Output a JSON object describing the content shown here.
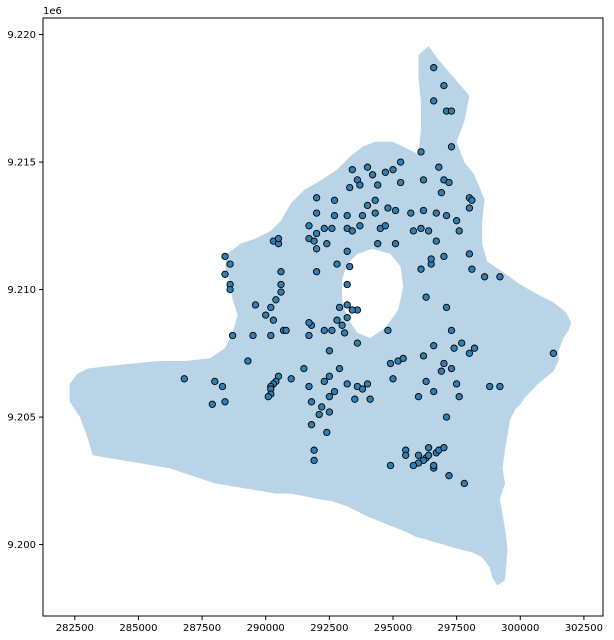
{
  "chart_data": {
    "type": "scatter",
    "title": "",
    "xlabel": "",
    "ylabel": "",
    "y_offset_label": "1e6",
    "xlim": [
      281250,
      303250
    ],
    "ylim": [
      9197200,
      9220650
    ],
    "x_ticks": [
      282500,
      285000,
      287500,
      290000,
      292500,
      295000,
      297500,
      300000,
      302500
    ],
    "x_tick_labels": [
      "282500",
      "285000",
      "287500",
      "290000",
      "292500",
      "295000",
      "297500",
      "300000",
      "302500"
    ],
    "y_ticks": [
      9200000,
      9205000,
      9210000,
      9215000,
      9220000
    ],
    "y_tick_labels": [
      "9.200",
      "9.205",
      "9.210",
      "9.215",
      "9.220"
    ],
    "grid": false,
    "legend": "none",
    "colors": {
      "area_fill": "#b8d4e6",
      "point_fill": "#2f7fb5",
      "point_edge": "#000000",
      "axis": "#000000"
    },
    "region": {
      "outline": [
        [
          296400,
          9219550
        ],
        [
          296800,
          9219000
        ],
        [
          297400,
          9218300
        ],
        [
          298000,
          9217600
        ],
        [
          297800,
          9216600
        ],
        [
          297500,
          9215800
        ],
        [
          297800,
          9215000
        ],
        [
          298200,
          9214500
        ],
        [
          298600,
          9213500
        ],
        [
          298500,
          9212700
        ],
        [
          298500,
          9211800
        ],
        [
          298700,
          9211100
        ],
        [
          299300,
          9210700
        ],
        [
          300000,
          9210200
        ],
        [
          300700,
          9209800
        ],
        [
          301300,
          9209500
        ],
        [
          301800,
          9209100
        ],
        [
          302000,
          9208700
        ],
        [
          301900,
          9208400
        ],
        [
          301700,
          9208100
        ],
        [
          301500,
          9207600
        ],
        [
          301500,
          9207200
        ],
        [
          301300,
          9206800
        ],
        [
          300700,
          9206300
        ],
        [
          300200,
          9205800
        ],
        [
          300000,
          9205500
        ],
        [
          299800,
          9205300
        ],
        [
          299600,
          9204900
        ],
        [
          299500,
          9204300
        ],
        [
          299400,
          9203700
        ],
        [
          299300,
          9203000
        ],
        [
          299400,
          9202400
        ],
        [
          299200,
          9201800
        ],
        [
          299300,
          9201200
        ],
        [
          299400,
          9200600
        ],
        [
          299500,
          9199800
        ],
        [
          299400,
          9198600
        ],
        [
          299100,
          9198400
        ],
        [
          298900,
          9198700
        ],
        [
          298800,
          9199100
        ],
        [
          298500,
          9199500
        ],
        [
          298100,
          9199700
        ],
        [
          297700,
          9199800
        ],
        [
          297300,
          9199900
        ],
        [
          297000,
          9200000
        ],
        [
          296600,
          9200100
        ],
        [
          296300,
          9200200
        ],
        [
          295900,
          9200300
        ],
        [
          295500,
          9200500
        ],
        [
          295000,
          9200700
        ],
        [
          294500,
          9200900
        ],
        [
          294000,
          9201100
        ],
        [
          293600,
          9201300
        ],
        [
          293200,
          9201500
        ],
        [
          292600,
          9201700
        ],
        [
          292000,
          9201800
        ],
        [
          291500,
          9201900
        ],
        [
          291000,
          9202000
        ],
        [
          290400,
          9202000
        ],
        [
          289800,
          9202100
        ],
        [
          289200,
          9202200
        ],
        [
          288600,
          9202300
        ],
        [
          288000,
          9202400
        ],
        [
          287400,
          9202600
        ],
        [
          286800,
          9202800
        ],
        [
          286200,
          9203000
        ],
        [
          285600,
          9203100
        ],
        [
          285000,
          9203200
        ],
        [
          284400,
          9203300
        ],
        [
          283800,
          9203400
        ],
        [
          283200,
          9203500
        ],
        [
          283000,
          9204200
        ],
        [
          282700,
          9205000
        ],
        [
          282300,
          9205600
        ],
        [
          282300,
          9206300
        ],
        [
          282600,
          9206700
        ],
        [
          283000,
          9206900
        ],
        [
          283800,
          9207000
        ],
        [
          284800,
          9207100
        ],
        [
          285800,
          9207200
        ],
        [
          286800,
          9207200
        ],
        [
          287800,
          9207300
        ],
        [
          288400,
          9207700
        ],
        [
          288700,
          9208300
        ],
        [
          288900,
          9209000
        ],
        [
          288700,
          9209600
        ],
        [
          288600,
          9210300
        ],
        [
          288400,
          9210900
        ],
        [
          288500,
          9211400
        ],
        [
          289000,
          9211800
        ],
        [
          289600,
          9212000
        ],
        [
          290200,
          9212300
        ],
        [
          290600,
          9212700
        ],
        [
          291000,
          9213400
        ],
        [
          291500,
          9213900
        ],
        [
          292200,
          9214300
        ],
        [
          292800,
          9214700
        ],
        [
          293300,
          9215200
        ],
        [
          293800,
          9215600
        ],
        [
          294300,
          9215800
        ],
        [
          295000,
          9215800
        ],
        [
          295600,
          9215500
        ],
        [
          296000,
          9215300
        ],
        [
          296100,
          9216300
        ],
        [
          296100,
          9217300
        ],
        [
          296000,
          9218300
        ],
        [
          296000,
          9219200
        ]
      ],
      "hole": [
        [
          293600,
          9211400
        ],
        [
          294200,
          9211600
        ],
        [
          294900,
          9211400
        ],
        [
          295300,
          9210900
        ],
        [
          295400,
          9210100
        ],
        [
          295200,
          9209200
        ],
        [
          294700,
          9208500
        ],
        [
          294100,
          9208100
        ],
        [
          293600,
          9208300
        ],
        [
          293200,
          9208900
        ],
        [
          293000,
          9209600
        ],
        [
          293000,
          9210400
        ],
        [
          293200,
          9211000
        ]
      ]
    },
    "points": [
      [
        296600,
        9218700
      ],
      [
        297000,
        9218000
      ],
      [
        296600,
        9217400
      ],
      [
        297100,
        9217000
      ],
      [
        297300,
        9217000
      ],
      [
        296100,
        9215400
      ],
      [
        297300,
        9215600
      ],
      [
        296800,
        9214800
      ],
      [
        293400,
        9214700
      ],
      [
        294000,
        9214800
      ],
      [
        294700,
        9214600
      ],
      [
        295000,
        9214700
      ],
      [
        295300,
        9215000
      ],
      [
        294200,
        9214500
      ],
      [
        293600,
        9214300
      ],
      [
        293300,
        9214000
      ],
      [
        293700,
        9214100
      ],
      [
        294400,
        9214100
      ],
      [
        295300,
        9214200
      ],
      [
        296200,
        9214300
      ],
      [
        297000,
        9214300
      ],
      [
        297200,
        9214200
      ],
      [
        296900,
        9213800
      ],
      [
        292000,
        9213600
      ],
      [
        292700,
        9213500
      ],
      [
        294000,
        9213300
      ],
      [
        294300,
        9213500
      ],
      [
        293800,
        9212900
      ],
      [
        293700,
        9212500
      ],
      [
        292000,
        9213000
      ],
      [
        292700,
        9212900
      ],
      [
        293200,
        9212900
      ],
      [
        294300,
        9213000
      ],
      [
        294800,
        9213200
      ],
      [
        295100,
        9213100
      ],
      [
        295700,
        9213000
      ],
      [
        296700,
        9213000
      ],
      [
        296200,
        9213100
      ],
      [
        297100,
        9212900
      ],
      [
        297500,
        9212700
      ],
      [
        298000,
        9213600
      ],
      [
        298100,
        9213500
      ],
      [
        298000,
        9213200
      ],
      [
        291700,
        9212500
      ],
      [
        292300,
        9212400
      ],
      [
        292000,
        9212200
      ],
      [
        292600,
        9212400
      ],
      [
        293200,
        9212400
      ],
      [
        293400,
        9212300
      ],
      [
        294500,
        9212400
      ],
      [
        294700,
        9212500
      ],
      [
        295800,
        9212300
      ],
      [
        296100,
        9212400
      ],
      [
        296400,
        9212300
      ],
      [
        297600,
        9212300
      ],
      [
        290300,
        9211900
      ],
      [
        290500,
        9211800
      ],
      [
        290500,
        9212000
      ],
      [
        291700,
        9212000
      ],
      [
        291900,
        9211900
      ],
      [
        292000,
        9211600
      ],
      [
        292400,
        9211800
      ],
      [
        293200,
        9211500
      ],
      [
        294400,
        9211800
      ],
      [
        295100,
        9211800
      ],
      [
        296700,
        9211900
      ],
      [
        297000,
        9211300
      ],
      [
        296500,
        9211000
      ],
      [
        296100,
        9210800
      ],
      [
        296500,
        9211200
      ],
      [
        298000,
        9211400
      ],
      [
        298100,
        9210800
      ],
      [
        298600,
        9210500
      ],
      [
        299200,
        9210500
      ],
      [
        288400,
        9211300
      ],
      [
        288600,
        9211000
      ],
      [
        288400,
        9210600
      ],
      [
        288600,
        9210200
      ],
      [
        288600,
        9210000
      ],
      [
        290600,
        9210700
      ],
      [
        292000,
        9210700
      ],
      [
        293200,
        9210200
      ],
      [
        293300,
        9210900
      ],
      [
        292800,
        9211000
      ],
      [
        290600,
        9210200
      ],
      [
        290600,
        9209900
      ],
      [
        290400,
        9209600
      ],
      [
        290200,
        9209300
      ],
      [
        289600,
        9209400
      ],
      [
        290000,
        9209000
      ],
      [
        290300,
        9208800
      ],
      [
        290700,
        9208400
      ],
      [
        289500,
        9208200
      ],
      [
        288700,
        9208200
      ],
      [
        291800,
        9208600
      ],
      [
        291700,
        9208700
      ],
      [
        292300,
        9208400
      ],
      [
        292900,
        9209300
      ],
      [
        293200,
        9209400
      ],
      [
        293600,
        9209200
      ],
      [
        293400,
        9209200
      ],
      [
        293200,
        9208900
      ],
      [
        292800,
        9208800
      ],
      [
        292600,
        9208400
      ],
      [
        293000,
        9208600
      ],
      [
        293100,
        9208300
      ],
      [
        293600,
        9207900
      ],
      [
        294800,
        9208400
      ],
      [
        296300,
        9209700
      ],
      [
        297100,
        9209300
      ],
      [
        297300,
        9208400
      ],
      [
        296600,
        9207800
      ],
      [
        296200,
        9207400
      ],
      [
        297400,
        9207700
      ],
      [
        297700,
        9207900
      ],
      [
        298200,
        9207700
      ],
      [
        298000,
        9207500
      ],
      [
        301300,
        9207500
      ],
      [
        289300,
        9207200
      ],
      [
        290200,
        9208200
      ],
      [
        290800,
        9208400
      ],
      [
        291700,
        9208200
      ],
      [
        292500,
        9207600
      ],
      [
        292900,
        9206900
      ],
      [
        291500,
        9206900
      ],
      [
        291000,
        9206500
      ],
      [
        290500,
        9206600
      ],
      [
        290400,
        9206400
      ],
      [
        290300,
        9206300
      ],
      [
        290200,
        9206200
      ],
      [
        290200,
        9206100
      ],
      [
        290200,
        9205900
      ],
      [
        290100,
        9205800
      ],
      [
        291700,
        9206200
      ],
      [
        292500,
        9206600
      ],
      [
        292300,
        9206400
      ],
      [
        292700,
        9206000
      ],
      [
        292500,
        9205800
      ],
      [
        293200,
        9206300
      ],
      [
        293600,
        9206200
      ],
      [
        293800,
        9206100
      ],
      [
        294000,
        9206300
      ],
      [
        293500,
        9205700
      ],
      [
        294100,
        9205700
      ],
      [
        295000,
        9206500
      ],
      [
        294900,
        9207100
      ],
      [
        295200,
        9207200
      ],
      [
        295400,
        9207300
      ],
      [
        296300,
        9206400
      ],
      [
        296000,
        9205800
      ],
      [
        296600,
        9206000
      ],
      [
        296900,
        9206800
      ],
      [
        297000,
        9207100
      ],
      [
        297300,
        9206900
      ],
      [
        297500,
        9206300
      ],
      [
        297600,
        9205800
      ],
      [
        298800,
        9206200
      ],
      [
        299200,
        9206200
      ],
      [
        297100,
        9205000
      ],
      [
        288000,
        9206400
      ],
      [
        288300,
        9206200
      ],
      [
        286800,
        9206500
      ],
      [
        287900,
        9205500
      ],
      [
        288400,
        9205600
      ],
      [
        291800,
        9205600
      ],
      [
        292200,
        9205400
      ],
      [
        292100,
        9205100
      ],
      [
        292500,
        9205200
      ],
      [
        291800,
        9204700
      ],
      [
        292400,
        9204400
      ],
      [
        291900,
        9203700
      ],
      [
        291900,
        9203300
      ],
      [
        294900,
        9203100
      ],
      [
        295500,
        9203700
      ],
      [
        295500,
        9203500
      ],
      [
        296000,
        9203500
      ],
      [
        296300,
        9203400
      ],
      [
        296400,
        9203500
      ],
      [
        296400,
        9203800
      ],
      [
        296700,
        9203600
      ],
      [
        296800,
        9203700
      ],
      [
        296600,
        9203000
      ],
      [
        296600,
        9203100
      ],
      [
        296200,
        9203300
      ],
      [
        296000,
        9203200
      ],
      [
        295800,
        9203100
      ],
      [
        297200,
        9202700
      ],
      [
        297800,
        9202400
      ],
      [
        297000,
        9203800
      ]
    ]
  }
}
